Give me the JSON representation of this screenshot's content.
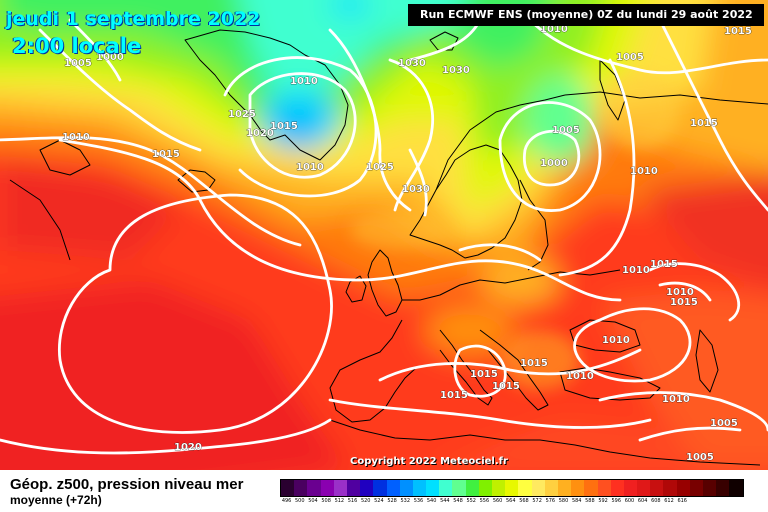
{
  "header": {
    "date_line": "jeudi 1 septembre 2022",
    "time_line": "2:00 locale",
    "run_info": "Run ECMWF ENS (moyenne) 0Z du lundi 29 août 2022"
  },
  "copyright": "Copyright 2022 Meteociel.fr",
  "legend": {
    "title": "Géop. z500, pression niveau mer",
    "subtitle": "moyenne  (+72h)",
    "colors": [
      "#2a0030",
      "#4a0060",
      "#6a0090",
      "#8a00b0",
      "#9a30c8",
      "#5000a0",
      "#2000c0",
      "#0030e0",
      "#0060ff",
      "#0090ff",
      "#00c0ff",
      "#00e0ff",
      "#40ffd0",
      "#60ff90",
      "#40f040",
      "#80f000",
      "#c0f000",
      "#e8f800",
      "#ffff40",
      "#ffea60",
      "#ffd040",
      "#ffb020",
      "#ff9010",
      "#ff7010",
      "#ff5020",
      "#ff3020",
      "#f02020",
      "#e01818",
      "#c81010",
      "#b00808",
      "#980000",
      "#780000",
      "#580000",
      "#380000",
      "#100000"
    ],
    "ticks": [
      "496",
      "500",
      "504",
      "508",
      "512",
      "516",
      "520",
      "524",
      "528",
      "532",
      "536",
      "540",
      "544",
      "548",
      "552",
      "556",
      "560",
      "564",
      "568",
      "572",
      "576",
      "580",
      "584",
      "588",
      "592",
      "596",
      "600",
      "604",
      "608",
      "612",
      "616",
      "",
      "",
      "",
      ""
    ]
  },
  "isobar_labels": [
    {
      "text": "1005"
    },
    {
      "text": "1000"
    },
    {
      "text": "1010"
    },
    {
      "text": "1025"
    },
    {
      "text": "1020"
    },
    {
      "text": "1015"
    },
    {
      "text": "1010"
    },
    {
      "text": "1010"
    },
    {
      "text": "1015"
    },
    {
      "text": "1030"
    },
    {
      "text": "1030"
    },
    {
      "text": "1025"
    },
    {
      "text": "1030"
    },
    {
      "text": "1010"
    },
    {
      "text": "1005"
    },
    {
      "text": "1000"
    },
    {
      "text": "1005"
    },
    {
      "text": "1015"
    },
    {
      "text": "1010"
    },
    {
      "text": "1015"
    },
    {
      "text": "1010"
    },
    {
      "text": "1010"
    },
    {
      "text": "1015"
    },
    {
      "text": "1010"
    },
    {
      "text": "1015"
    },
    {
      "text": "1015"
    },
    {
      "text": "1010"
    },
    {
      "text": "1015"
    },
    {
      "text": "1015"
    },
    {
      "text": "1010"
    },
    {
      "text": "1005"
    },
    {
      "text": "1005"
    },
    {
      "text": "1020"
    },
    {
      "text": "1015"
    }
  ]
}
